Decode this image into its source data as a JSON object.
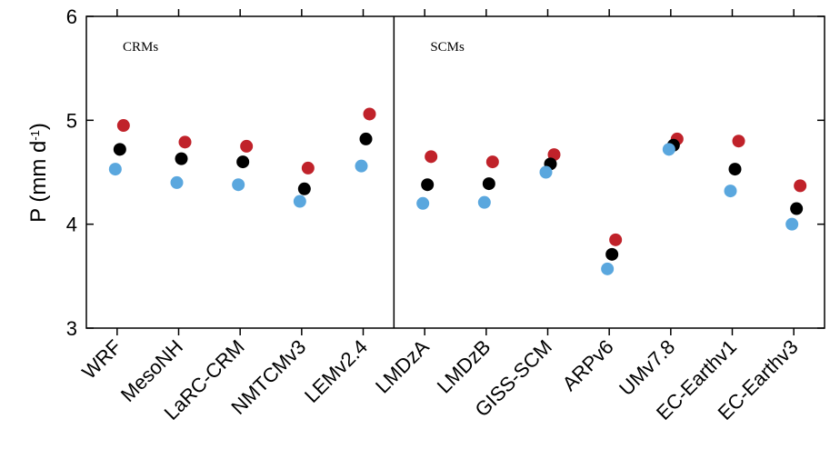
{
  "chart_data": {
    "type": "scatter",
    "title": "",
    "xlabel": "",
    "ylabel": "P (mm d",
    "ylabel_superscript": "-1",
    "ylabel_close": ")",
    "ylim": [
      3,
      6
    ],
    "yticks": [
      3,
      4,
      5,
      6
    ],
    "categories": [
      "WRF",
      "MesoNH",
      "LaRC-CRM",
      "NMTCMv3",
      "LEMv2.4",
      "LMDzA",
      "LMDzB",
      "GISS-SCM",
      "ARPv6",
      "UMv7.8",
      "EC-Earthv1",
      "EC-Earthv3"
    ],
    "groups": [
      {
        "label": "CRMs",
        "count": 5
      },
      {
        "label": "SCMs",
        "count": 7
      }
    ],
    "series": [
      {
        "color": "#c0222a",
        "values": [
          4.95,
          4.79,
          4.75,
          4.54,
          5.06,
          4.65,
          4.6,
          4.67,
          3.85,
          4.82,
          4.8,
          4.37
        ]
      },
      {
        "color": "#000000",
        "values": [
          4.72,
          4.63,
          4.6,
          4.34,
          4.82,
          4.38,
          4.39,
          4.58,
          3.71,
          4.76,
          4.53,
          4.15
        ]
      },
      {
        "color": "#5aa7de",
        "values": [
          4.53,
          4.4,
          4.38,
          4.22,
          4.56,
          4.2,
          4.21,
          4.5,
          3.57,
          4.72,
          4.32,
          4.0
        ]
      }
    ],
    "grid": false,
    "legend": "none"
  }
}
